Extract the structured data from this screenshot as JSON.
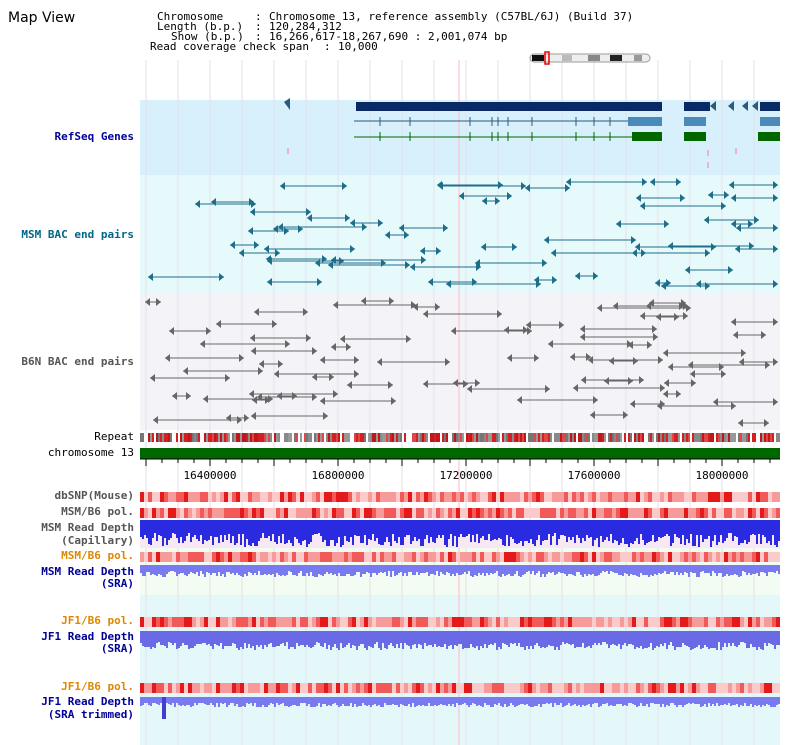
{
  "page_title": "Map View",
  "header": {
    "chromosome_key": "Chromosome",
    "chromosome_value": "Chromosome 13, reference assembly (C57BL/6J) (Build 37)",
    "length_key": "Length (b.p.)",
    "length_value": "120,284,312",
    "show_key": "Show (b.p.)",
    "show_value": "16,266,617-18,267,690 : 2,001,074 bp",
    "coverage_key": "Read coverage check span",
    "coverage_value": "10,000"
  },
  "tracks": {
    "refseq": "RefSeq Genes",
    "msm_bac": "MSM BAC end pairs",
    "b6n_bac": "B6N BAC end pairs",
    "repeat": "Repeat",
    "chromosome": "chromosome 13",
    "dbsnp": "dbSNP(Mouse)",
    "msm_pol1": "MSM/B6 pol.",
    "msm_depth_cap_1": "MSM Read Depth",
    "msm_depth_cap_2": "(Capillary)",
    "msm_pol2": "MSM/B6 pol.",
    "msm_depth_sra_1": "MSM Read Depth",
    "msm_depth_sra_2": "(SRA)",
    "jf1_pol1": "JF1/B6 pol.",
    "jf1_depth_sra_1": "JF1 Read Depth",
    "jf1_depth_sra_2": "(SRA)",
    "jf1_pol2": "JF1/B6 pol.",
    "jf1_depth_trim_1": "JF1 Read Depth",
    "jf1_depth_trim_2": "(SRA trimmed)"
  },
  "ruler": {
    "ticks": [
      "16400000",
      "16800000",
      "17200000",
      "17600000",
      "18000000"
    ]
  },
  "colors": {
    "refseq_label": "#000099",
    "msm_bac_label": "#006688",
    "b6n_bac_label": "#555555",
    "pol_orange": "#dd8800",
    "depth_blue": "#000099",
    "chromosome_green": "#006600"
  }
}
